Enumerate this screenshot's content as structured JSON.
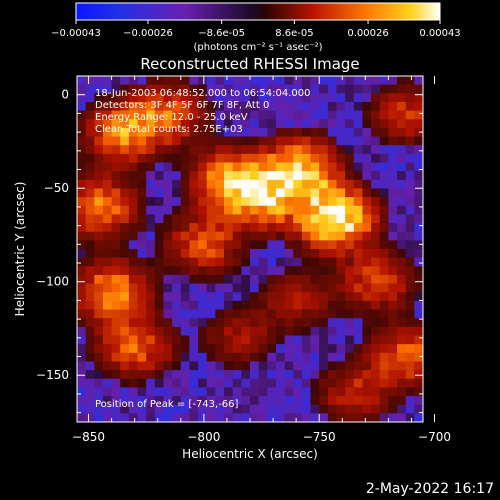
{
  "chart_data": {
    "type": "heatmap",
    "title": "Reconstructed RHESSI Image",
    "colorbar": {
      "ticks": [
        "-0.00043",
        "-0.00026",
        "-8.6e-05",
        "8.6e-05",
        "0.00026",
        "0.00043"
      ],
      "unit_label": "(photons cm⁻² s⁻¹ asec⁻²)",
      "range": [
        -0.00043,
        0.00043
      ]
    },
    "xlabel": "Heliocentric X (arcsec)",
    "ylabel": "Heliocentric Y (arcsec)",
    "xlim": [
      -855,
      -705
    ],
    "ylim": [
      -175,
      10
    ],
    "xticks": [
      -850,
      -800,
      -750,
      -700
    ],
    "yticks": [
      0,
      -50,
      -100,
      -150
    ],
    "annotations": [
      "18-Jun-2003 06:48:52.000 to 06:54:04.000",
      "Detectors: 3F 4F 5F 6F 7F 8F, Att 0",
      "Energy Range: 12.0 - 25.0 keV",
      "Clean     Total counts: 2.75E+03"
    ],
    "peak_label": "Position of Peak = [-743,-66]",
    "peak": [
      -743,
      -66
    ],
    "hotspots": [
      {
        "x": -743,
        "y": -66,
        "value": 0.00043
      },
      {
        "x": -758,
        "y": -40,
        "value": 0.00034
      },
      {
        "x": -775,
        "y": -55,
        "value": 0.0003
      },
      {
        "x": -790,
        "y": -45,
        "value": 0.00024
      },
      {
        "x": -800,
        "y": -80,
        "value": 0.0002
      },
      {
        "x": -835,
        "y": -20,
        "value": 0.00026
      },
      {
        "x": -815,
        "y": -10,
        "value": 0.0002
      },
      {
        "x": -845,
        "y": -60,
        "value": 0.00024
      },
      {
        "x": -840,
        "y": -105,
        "value": 0.00026
      },
      {
        "x": -830,
        "y": -135,
        "value": 0.00022
      },
      {
        "x": -725,
        "y": -100,
        "value": 0.00018
      },
      {
        "x": -712,
        "y": -140,
        "value": 0.00022
      },
      {
        "x": -735,
        "y": -160,
        "value": 0.00015
      },
      {
        "x": -712,
        "y": -10,
        "value": 0.00016
      },
      {
        "x": -785,
        "y": -130,
        "value": 0.00012
      },
      {
        "x": -760,
        "y": -110,
        "value": 0.00012
      }
    ],
    "grid": false
  },
  "footer_timestamp": "2-May-2022 16:17"
}
